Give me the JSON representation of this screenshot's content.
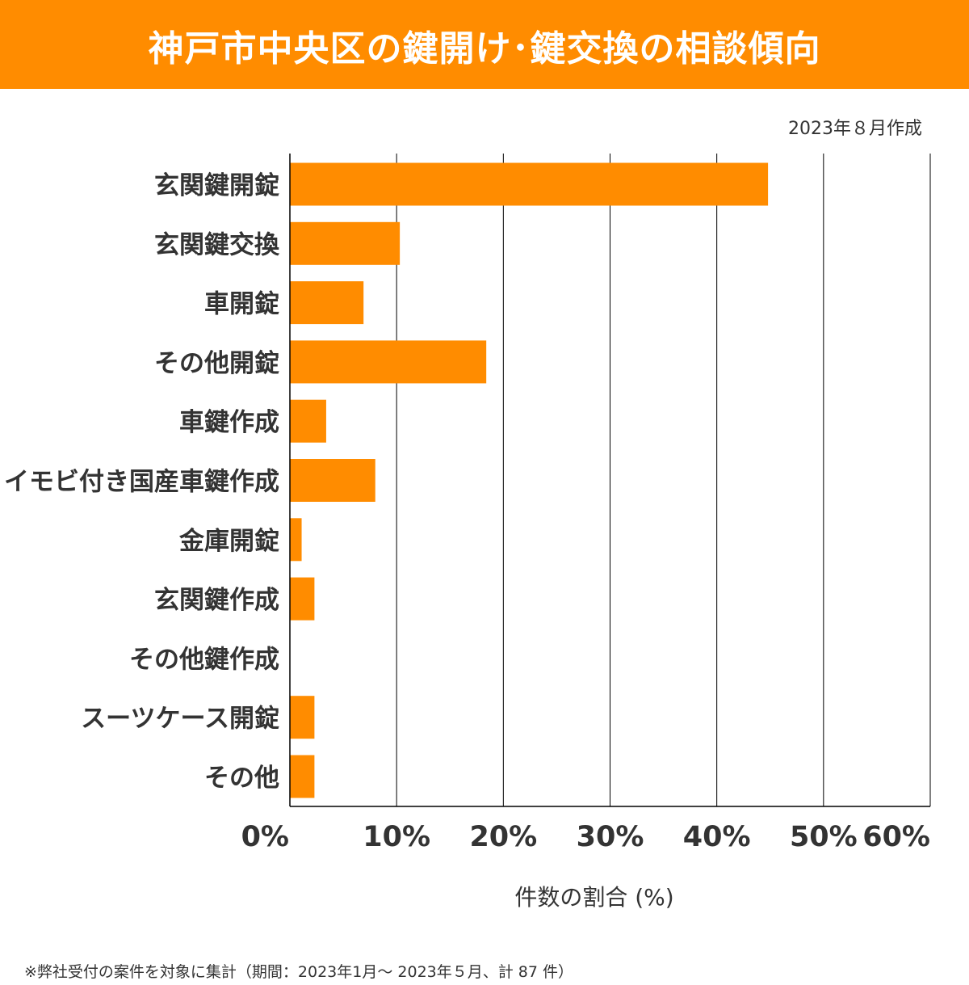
{
  "header": {
    "title": "神戸市中央区の鍵開け･鍵交換の相談傾向"
  },
  "date_note": "2023年８月作成",
  "footnote": "※弊社受付の案件を対象に集計（期間：2023年1月～ 2023年５月、計 87 件）",
  "colors": {
    "accent": "#ff8c00",
    "bar": "#ff8c00",
    "text": "#333333",
    "grid": "#000000"
  },
  "chart_data": {
    "type": "bar",
    "orientation": "horizontal",
    "title": "神戸市中央区の鍵開け･鍵交換の相談傾向",
    "xlabel": "件数の割合 (%)",
    "ylabel": "",
    "categories": [
      "玄関鍵開錠",
      "玄関鍵交換",
      "車開錠",
      "その他開錠",
      "車鍵作成",
      "イモビ付き国産車鍵作成",
      "金庫開錠",
      "玄関鍵作成",
      "その他鍵作成",
      "スーツケース開錠",
      "その他"
    ],
    "values": [
      44.8,
      10.3,
      6.9,
      18.4,
      3.4,
      8.0,
      1.1,
      2.3,
      0,
      2.3,
      2.3
    ],
    "xlim": [
      0,
      60
    ],
    "xticks": [
      0,
      10,
      20,
      30,
      40,
      50,
      60
    ],
    "xtick_labels": [
      "0%",
      "10%",
      "20%",
      "30%",
      "40%",
      "50%",
      "60%"
    ],
    "grid": true,
    "legend": "none"
  }
}
